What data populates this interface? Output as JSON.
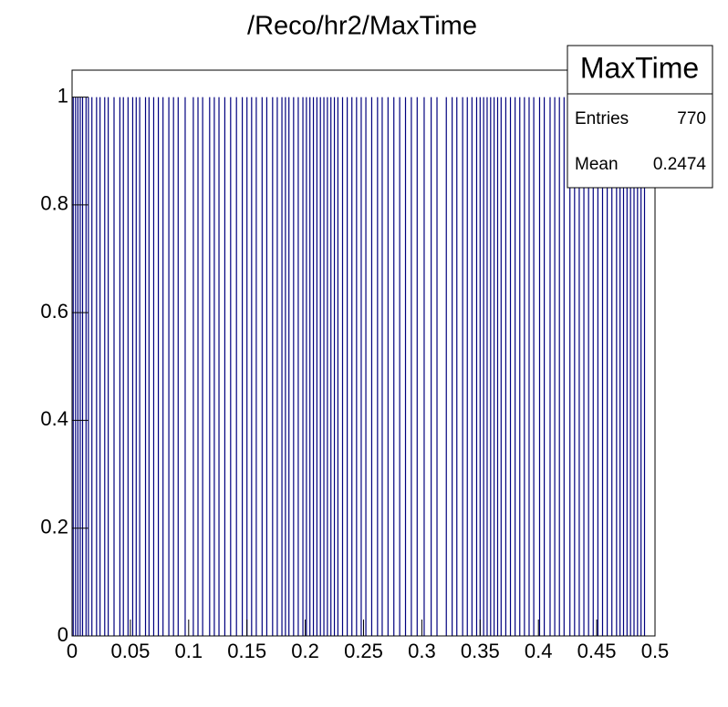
{
  "chart_data": {
    "type": "histogram",
    "title": "/Reco/hr2/MaxTime",
    "color": "#00007f",
    "x": [
      0.001,
      0.003,
      0.005,
      0.007,
      0.009,
      0.012,
      0.014,
      0.017,
      0.021,
      0.024,
      0.028,
      0.031,
      0.036,
      0.041,
      0.044,
      0.048,
      0.052,
      0.055,
      0.058,
      0.063,
      0.066,
      0.07,
      0.074,
      0.078,
      0.083,
      0.087,
      0.091,
      0.097,
      0.104,
      0.108,
      0.112,
      0.118,
      0.122,
      0.126,
      0.131,
      0.136,
      0.141,
      0.146,
      0.15,
      0.154,
      0.158,
      0.163,
      0.167,
      0.172,
      0.176,
      0.18,
      0.183,
      0.186,
      0.19,
      0.194,
      0.198,
      0.201,
      0.204,
      0.207,
      0.21,
      0.213,
      0.216,
      0.219,
      0.222,
      0.225,
      0.228,
      0.232,
      0.236,
      0.24,
      0.244,
      0.248,
      0.252,
      0.257,
      0.262,
      0.266,
      0.271,
      0.276,
      0.281,
      0.286,
      0.291,
      0.296,
      0.302,
      0.308,
      0.313,
      0.321,
      0.326,
      0.33,
      0.335,
      0.339,
      0.343,
      0.347,
      0.35,
      0.353,
      0.356,
      0.359,
      0.362,
      0.365,
      0.368,
      0.372,
      0.376,
      0.38,
      0.384,
      0.388,
      0.392,
      0.396,
      0.401,
      0.405,
      0.41,
      0.414,
      0.418,
      0.422,
      0.427,
      0.431,
      0.435,
      0.439,
      0.443,
      0.447,
      0.451,
      0.455,
      0.459,
      0.463,
      0.467,
      0.47,
      0.473,
      0.476,
      0.479,
      0.482,
      0.485,
      0.488,
      0.491
    ],
    "values": [
      1,
      1,
      1,
      1,
      1,
      1,
      1,
      1,
      1,
      1,
      1,
      1,
      1,
      1,
      1,
      1,
      1,
      1,
      1,
      1,
      1,
      1,
      1,
      1,
      1,
      1,
      1,
      1,
      1,
      1,
      1,
      1,
      1,
      1,
      1,
      1,
      1,
      1,
      1,
      1,
      1,
      1,
      1,
      1,
      1,
      1,
      1,
      1,
      1,
      1,
      1,
      1,
      1,
      1,
      1,
      1,
      1,
      1,
      1,
      1,
      1,
      1,
      1,
      1,
      1,
      1,
      1,
      1,
      1,
      1,
      1,
      1,
      1,
      1,
      1,
      1,
      1,
      1,
      1,
      1,
      1,
      1,
      1,
      1,
      1,
      1,
      1,
      1,
      1,
      1,
      1,
      1,
      1,
      1,
      1,
      1,
      1,
      1,
      1,
      1,
      1,
      1,
      1,
      1,
      1,
      1,
      1,
      1,
      1,
      1,
      1,
      1,
      1,
      1,
      1,
      1,
      1,
      1,
      1,
      1,
      1,
      1,
      1,
      1,
      1
    ],
    "xlim": [
      0,
      0.5
    ],
    "xticks": [
      0,
      0.05,
      0.1,
      0.15,
      0.2,
      0.25,
      0.3,
      0.35,
      0.4,
      0.45,
      0.5
    ],
    "ylim": [
      0,
      1.05
    ],
    "yticks": [
      0,
      0.2,
      0.4,
      0.6,
      0.8,
      1
    ],
    "stats": {
      "title": "MaxTime",
      "entries_label": "Entries",
      "entries": 770,
      "mean_label": "Mean",
      "mean": 0.2474
    }
  }
}
